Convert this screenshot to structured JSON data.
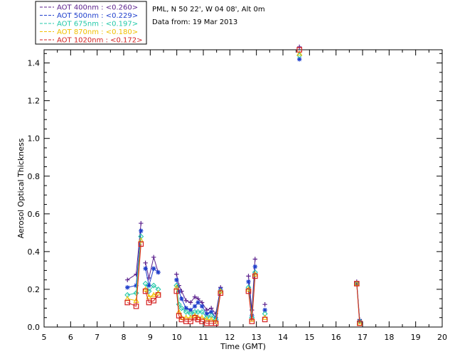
{
  "header": {
    "line1": "PML, N 50 22', W 04 08', Alt 0m",
    "line2": "Data from: 19 Mar 2013"
  },
  "chart_data": {
    "type": "line",
    "xlabel": "Time (GMT)",
    "ylabel": "Aerosol Optical Thickness",
    "xlim": [
      5,
      20
    ],
    "ylim": [
      0,
      1.47
    ],
    "x_ticks": [
      5,
      6,
      7,
      8,
      9,
      10,
      11,
      12,
      13,
      14,
      15,
      16,
      17,
      18,
      19,
      20
    ],
    "y_ticks": [
      "0.0",
      "0.2",
      "0.4",
      "0.6",
      "0.8",
      "1.0",
      "1.2",
      "1.4"
    ],
    "legend_position": "top-left outside",
    "series": [
      {
        "name": "AOT  400nm : <0.260>",
        "color": "#5a1f8c",
        "marker": "plus",
        "x": [
          8.14,
          8.47,
          8.65,
          8.82,
          8.95,
          9.13,
          9.3,
          9.99,
          10.08,
          10.18,
          10.35,
          10.52,
          10.68,
          10.8,
          10.95,
          11.13,
          11.3,
          11.47,
          11.65,
          12.7,
          12.83,
          12.95,
          13.32,
          14.62,
          16.78,
          16.89
        ],
        "y": [
          0.25,
          0.28,
          0.55,
          0.34,
          0.26,
          0.37,
          0.29,
          0.28,
          0.22,
          0.19,
          0.14,
          0.13,
          0.16,
          0.15,
          0.13,
          0.09,
          0.1,
          0.07,
          0.21,
          0.27,
          0.09,
          0.36,
          0.12,
          1.49,
          0.24,
          0.04
        ],
        "gaps_after_index": [
          2,
          6,
          18,
          21,
          22,
          23
        ]
      },
      {
        "name": "AOT  500nm : <0.229>",
        "color": "#1f3fcc",
        "marker": "star",
        "x": [
          8.14,
          8.47,
          8.65,
          8.82,
          8.95,
          9.13,
          9.3,
          9.99,
          10.08,
          10.18,
          10.35,
          10.52,
          10.68,
          10.8,
          10.95,
          11.13,
          11.3,
          11.47,
          11.65,
          12.7,
          12.83,
          12.95,
          13.32,
          14.62,
          16.78,
          16.89
        ],
        "y": [
          0.21,
          0.22,
          0.51,
          0.31,
          0.22,
          0.31,
          0.29,
          0.25,
          0.19,
          0.15,
          0.1,
          0.09,
          0.11,
          0.13,
          0.11,
          0.07,
          0.08,
          0.05,
          0.2,
          0.24,
          0.06,
          0.32,
          0.09,
          1.42,
          0.23,
          0.03
        ],
        "gaps_after_index": [
          2,
          6,
          18,
          21,
          22,
          23
        ]
      },
      {
        "name": "AOT  675nm : <0.197>",
        "color": "#22c8a8",
        "marker": "diamond",
        "x": [
          8.14,
          8.47,
          8.65,
          8.82,
          8.95,
          9.13,
          9.3,
          9.99,
          10.08,
          10.18,
          10.35,
          10.52,
          10.68,
          10.8,
          10.95,
          11.13,
          11.3,
          11.47,
          11.65,
          12.7,
          12.83,
          12.95,
          13.32,
          14.62,
          16.78,
          16.89
        ],
        "y": [
          0.17,
          0.18,
          0.48,
          0.23,
          0.19,
          0.22,
          0.2,
          0.22,
          0.12,
          0.1,
          0.08,
          0.07,
          0.08,
          0.08,
          0.08,
          0.05,
          0.06,
          0.04,
          0.19,
          0.21,
          0.05,
          0.29,
          0.07,
          1.44,
          0.23,
          0.03
        ],
        "gaps_after_index": [
          2,
          6,
          18,
          21,
          22,
          23
        ]
      },
      {
        "name": "AOT  870nm : <0.180>",
        "color": "#f0c000",
        "marker": "triangle",
        "x": [
          8.14,
          8.47,
          8.65,
          8.82,
          8.95,
          9.13,
          9.3,
          9.99,
          10.08,
          10.18,
          10.35,
          10.52,
          10.68,
          10.8,
          10.95,
          11.13,
          11.3,
          11.47,
          11.65,
          12.7,
          12.83,
          12.95,
          13.32,
          14.62,
          16.78,
          16.89
        ],
        "y": [
          0.15,
          0.14,
          0.46,
          0.2,
          0.16,
          0.17,
          0.18,
          0.21,
          0.08,
          0.05,
          0.05,
          0.05,
          0.06,
          0.05,
          0.05,
          0.04,
          0.04,
          0.03,
          0.19,
          0.2,
          0.04,
          0.28,
          0.05,
          1.45,
          0.23,
          0.02
        ],
        "gaps_after_index": [
          2,
          6,
          18,
          21,
          22,
          23
        ]
      },
      {
        "name": "AOT 1020nm : <0.172>",
        "color": "#d42020",
        "marker": "square",
        "x": [
          8.14,
          8.47,
          8.65,
          8.82,
          8.95,
          9.13,
          9.3,
          9.99,
          10.08,
          10.18,
          10.35,
          10.52,
          10.68,
          10.8,
          10.95,
          11.13,
          11.3,
          11.47,
          11.65,
          12.7,
          12.83,
          12.95,
          13.32,
          14.62,
          16.78,
          16.89
        ],
        "y": [
          0.13,
          0.11,
          0.44,
          0.19,
          0.13,
          0.14,
          0.17,
          0.19,
          0.06,
          0.04,
          0.03,
          0.03,
          0.05,
          0.04,
          0.03,
          0.02,
          0.02,
          0.02,
          0.18,
          0.19,
          0.03,
          0.27,
          0.04,
          1.47,
          0.23,
          0.02
        ],
        "gaps_after_index": [
          2,
          6,
          18,
          21,
          22,
          23
        ]
      }
    ]
  }
}
